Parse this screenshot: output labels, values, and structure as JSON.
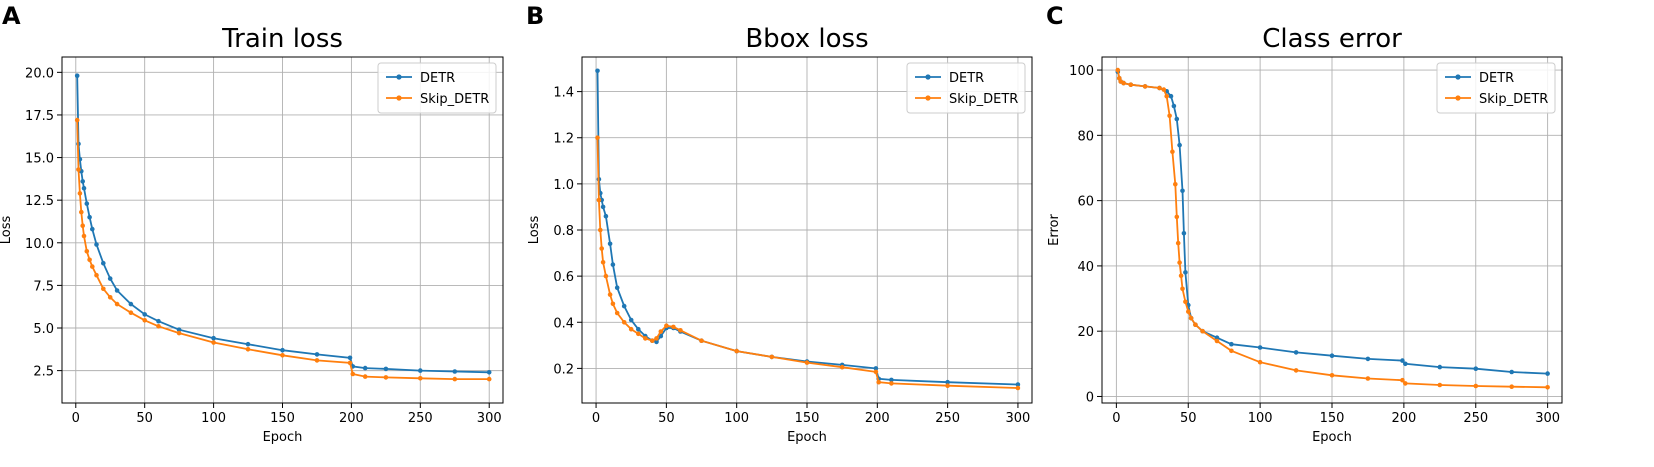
{
  "panel_letters": [
    "A",
    "B",
    "C"
  ],
  "colors": {
    "DETR": "#1f77b4",
    "Skip_DETR": "#ff7f0e",
    "grid": "#b0b0b0",
    "axes": "#000000"
  },
  "chart_data": [
    {
      "type": "line",
      "panel": "A",
      "title": "Train loss",
      "xlabel": "Epoch",
      "ylabel": "Loss",
      "xlim": [
        -10,
        310
      ],
      "ylim": [
        0.6,
        20.9
      ],
      "xticks": [
        0,
        50,
        100,
        150,
        200,
        250,
        300
      ],
      "yticks": [
        2.5,
        5.0,
        7.5,
        10.0,
        12.5,
        15.0,
        17.5,
        20.0
      ],
      "ytick_labels": [
        "2.5",
        "5.0",
        "7.5",
        "10.0",
        "12.5",
        "15.0",
        "17.5",
        "20.0"
      ],
      "grid": true,
      "legend_position": "top-right",
      "series": [
        {
          "name": "DETR",
          "color": "#1f77b4",
          "x": [
            1,
            2,
            3,
            4,
            5,
            6,
            8,
            10,
            12,
            15,
            20,
            25,
            30,
            40,
            50,
            60,
            75,
            100,
            125,
            150,
            175,
            199,
            201,
            210,
            225,
            250,
            275,
            300
          ],
          "y": [
            19.8,
            15.8,
            14.9,
            14.2,
            13.6,
            13.2,
            12.3,
            11.5,
            10.8,
            9.9,
            8.8,
            7.9,
            7.2,
            6.4,
            5.8,
            5.4,
            4.9,
            4.4,
            4.05,
            3.7,
            3.45,
            3.25,
            2.75,
            2.65,
            2.6,
            2.5,
            2.45,
            2.4
          ]
        },
        {
          "name": "Skip_DETR",
          "color": "#ff7f0e",
          "x": [
            1,
            2,
            3,
            4,
            5,
            6,
            8,
            10,
            12,
            15,
            20,
            25,
            30,
            40,
            50,
            60,
            75,
            100,
            125,
            150,
            175,
            199,
            201,
            210,
            225,
            250,
            275,
            300
          ],
          "y": [
            17.2,
            14.3,
            12.9,
            11.8,
            11.0,
            10.4,
            9.5,
            9.0,
            8.6,
            8.1,
            7.3,
            6.8,
            6.4,
            5.9,
            5.45,
            5.1,
            4.7,
            4.15,
            3.75,
            3.4,
            3.1,
            2.95,
            2.3,
            2.15,
            2.1,
            2.05,
            2.0,
            2.0
          ]
        }
      ]
    },
    {
      "type": "line",
      "panel": "B",
      "title": "Bbox loss",
      "xlabel": "Epoch",
      "ylabel": "Loss",
      "xlim": [
        -10,
        310
      ],
      "ylim": [
        0.05,
        1.55
      ],
      "xticks": [
        0,
        50,
        100,
        150,
        200,
        250,
        300
      ],
      "yticks": [
        0.2,
        0.4,
        0.6,
        0.8,
        1.0,
        1.2,
        1.4
      ],
      "ytick_labels": [
        "0.2",
        "0.4",
        "0.6",
        "0.8",
        "1.0",
        "1.2",
        "1.4"
      ],
      "grid": true,
      "legend_position": "top-right",
      "series": [
        {
          "name": "DETR",
          "color": "#1f77b4",
          "x": [
            1,
            2,
            3,
            4,
            5,
            7,
            10,
            12,
            15,
            20,
            25,
            30,
            35,
            40,
            43,
            46,
            50,
            55,
            60,
            75,
            100,
            125,
            150,
            175,
            199,
            201,
            210,
            250,
            300
          ],
          "y": [
            1.49,
            1.02,
            0.96,
            0.93,
            0.9,
            0.86,
            0.74,
            0.65,
            0.55,
            0.47,
            0.41,
            0.37,
            0.34,
            0.32,
            0.315,
            0.34,
            0.375,
            0.375,
            0.36,
            0.32,
            0.275,
            0.25,
            0.23,
            0.215,
            0.2,
            0.155,
            0.15,
            0.14,
            0.13
          ]
        },
        {
          "name": "Skip_DETR",
          "color": "#ff7f0e",
          "x": [
            1,
            2,
            3,
            4,
            5,
            7,
            10,
            12,
            15,
            20,
            25,
            30,
            35,
            40,
            43,
            46,
            50,
            55,
            60,
            75,
            100,
            125,
            150,
            175,
            199,
            201,
            210,
            250,
            300
          ],
          "y": [
            1.2,
            0.93,
            0.8,
            0.72,
            0.66,
            0.6,
            0.52,
            0.48,
            0.44,
            0.4,
            0.37,
            0.35,
            0.33,
            0.32,
            0.33,
            0.36,
            0.385,
            0.38,
            0.365,
            0.32,
            0.275,
            0.25,
            0.225,
            0.205,
            0.185,
            0.14,
            0.135,
            0.125,
            0.115
          ]
        }
      ]
    },
    {
      "type": "line",
      "panel": "C",
      "title": "Class error",
      "xlabel": "Epoch",
      "ylabel": "Error",
      "xlim": [
        -10,
        310
      ],
      "ylim": [
        -2,
        104
      ],
      "xticks": [
        0,
        50,
        100,
        150,
        200,
        250,
        300
      ],
      "yticks": [
        0,
        20,
        40,
        60,
        80,
        100
      ],
      "ytick_labels": [
        "0",
        "20",
        "40",
        "60",
        "80",
        "100"
      ],
      "grid": true,
      "legend_position": "top-right",
      "series": [
        {
          "name": "DETR",
          "color": "#1f77b4",
          "x": [
            1,
            2,
            3,
            5,
            10,
            20,
            30,
            35,
            38,
            40,
            42,
            44,
            46,
            47,
            48,
            50,
            52,
            55,
            60,
            70,
            80,
            100,
            125,
            150,
            175,
            199,
            201,
            225,
            250,
            275,
            300
          ],
          "y": [
            99.5,
            97.5,
            96.5,
            96.0,
            95.5,
            95.0,
            94.5,
            93.5,
            92.0,
            89.0,
            85.0,
            77.0,
            63.0,
            50.0,
            38.0,
            28.0,
            24.0,
            22.0,
            20.0,
            18.0,
            16.0,
            15.0,
            13.5,
            12.5,
            11.5,
            11.0,
            10.0,
            9.0,
            8.5,
            7.5,
            7.0
          ]
        },
        {
          "name": "Skip_DETR",
          "color": "#ff7f0e",
          "x": [
            1,
            2,
            3,
            5,
            10,
            20,
            30,
            33,
            35,
            37,
            39,
            41,
            42,
            43,
            44,
            45,
            46,
            48,
            50,
            52,
            55,
            60,
            70,
            80,
            100,
            125,
            150,
            175,
            199,
            201,
            225,
            250,
            275,
            300
          ],
          "y": [
            100.0,
            97.5,
            96.5,
            96.0,
            95.5,
            95.0,
            94.5,
            94.0,
            92.0,
            86.0,
            75.0,
            65.0,
            55.0,
            47.0,
            41.0,
            37.0,
            33.0,
            29.0,
            26.0,
            24.0,
            22.0,
            20.0,
            17.0,
            14.0,
            10.5,
            8.0,
            6.5,
            5.5,
            5.0,
            4.0,
            3.5,
            3.2,
            3.0,
            2.8
          ]
        }
      ]
    }
  ]
}
